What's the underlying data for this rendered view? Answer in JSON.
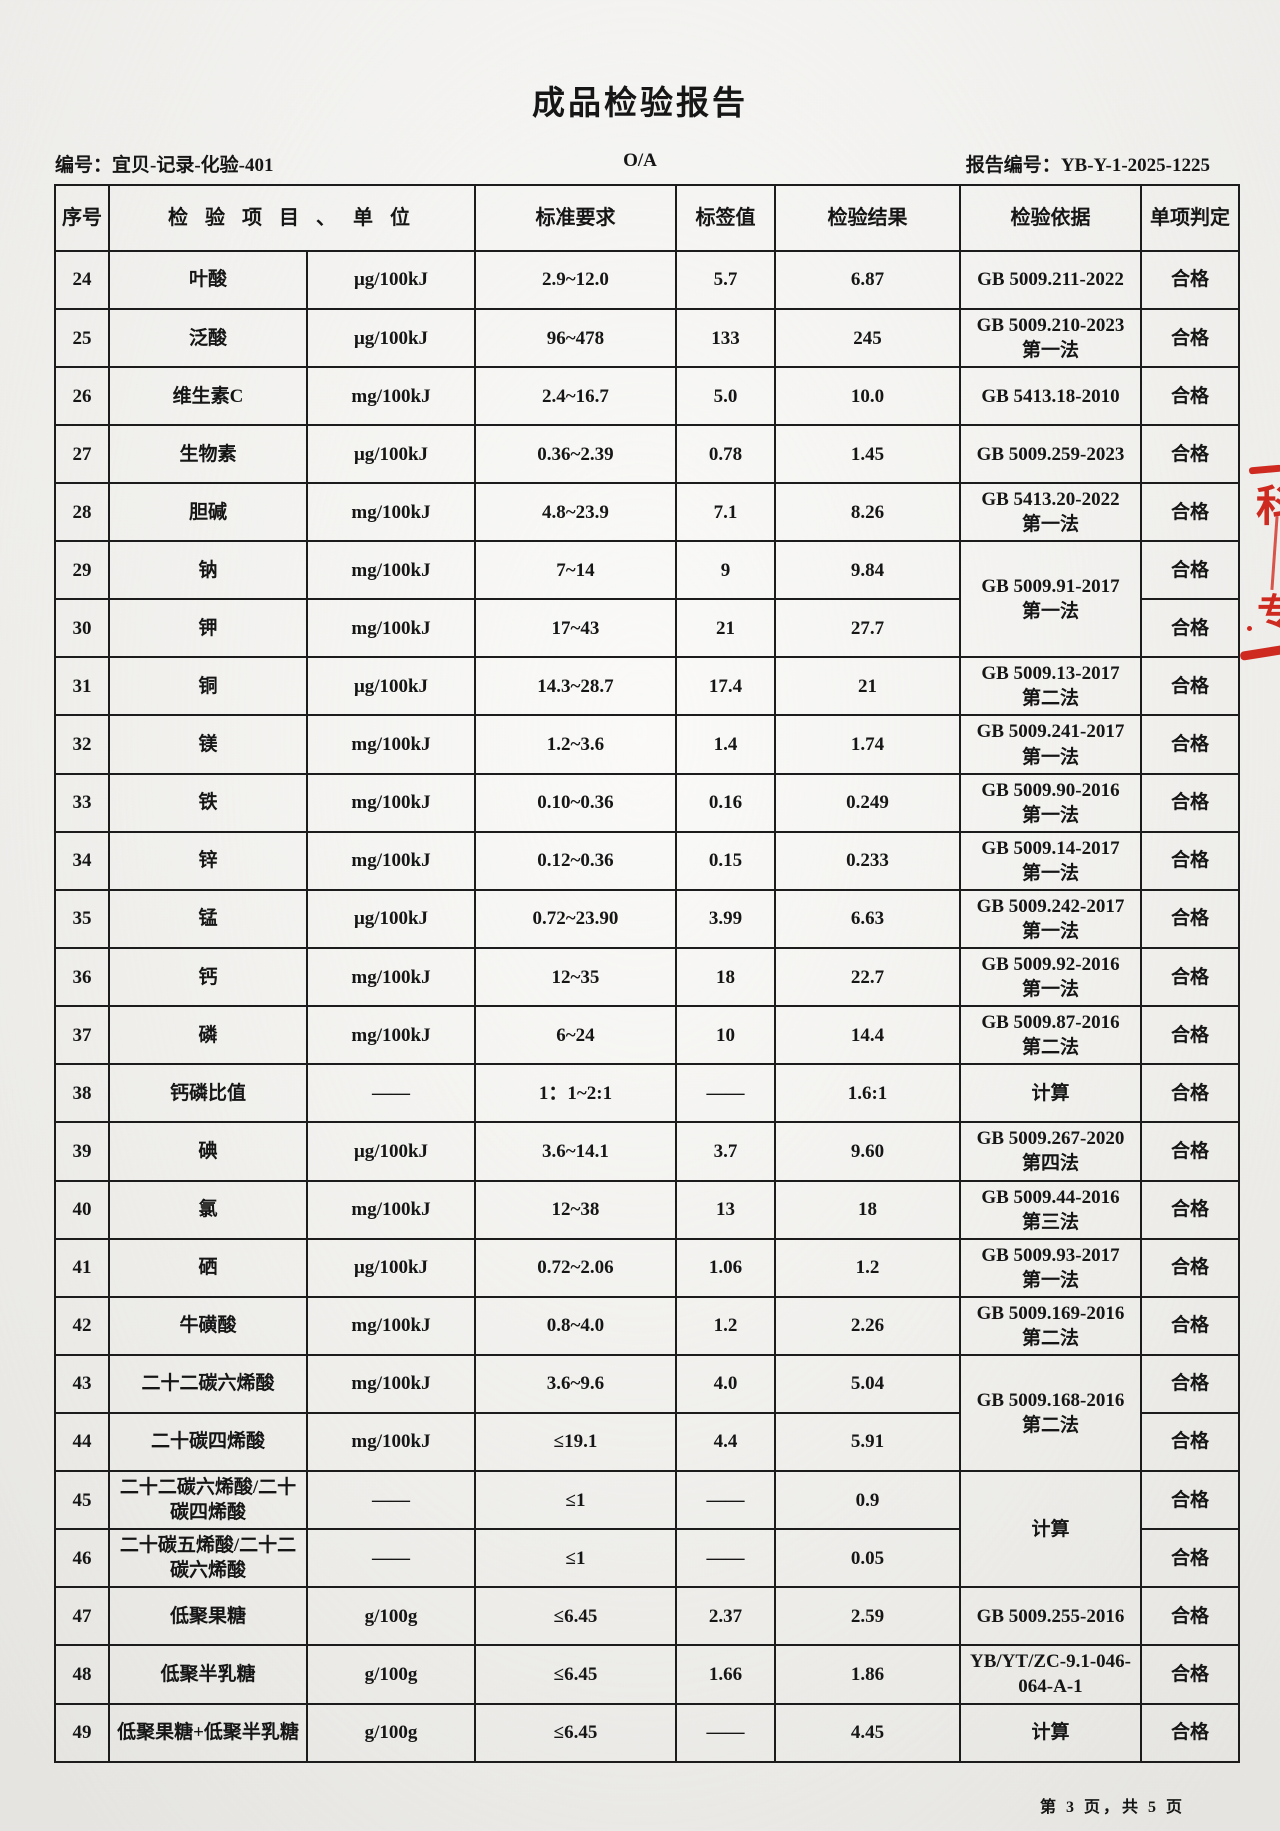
{
  "page": {
    "title": "成品检验报告",
    "doc_no_label": "编号：",
    "doc_no": "宜贝-记录-化验-401",
    "revision": "O/A",
    "report_no_label": "报告编号：",
    "report_no": "YB-Y-1-2025-1225",
    "footer": "第 3 页，共 5 页"
  },
  "table": {
    "headers": [
      "序号",
      "检 验 项 目 、 单 位",
      "标准要求",
      "标签值",
      "检验结果",
      "检验依据",
      "单项判定"
    ],
    "rows": [
      {
        "no": "24",
        "item": "叶酸",
        "unit": "μg/100kJ",
        "standard": "2.9~12.0",
        "label": "5.7",
        "result": "6.87",
        "basis": {
          "lines": [
            "GB 5009.211-2022"
          ],
          "rowspan": 1
        },
        "verdict": "合格"
      },
      {
        "no": "25",
        "item": "泛酸",
        "unit": "μg/100kJ",
        "standard": "96~478",
        "label": "133",
        "result": "245",
        "basis": {
          "lines": [
            "GB 5009.210-2023",
            "第一法"
          ],
          "rowspan": 1
        },
        "verdict": "合格"
      },
      {
        "no": "26",
        "item": "维生素C",
        "unit": "mg/100kJ",
        "standard": "2.4~16.7",
        "label": "5.0",
        "result": "10.0",
        "basis": {
          "lines": [
            "GB 5413.18-2010"
          ],
          "rowspan": 1
        },
        "verdict": "合格"
      },
      {
        "no": "27",
        "item": "生物素",
        "unit": "μg/100kJ",
        "standard": "0.36~2.39",
        "label": "0.78",
        "result": "1.45",
        "basis": {
          "lines": [
            "GB 5009.259-2023"
          ],
          "rowspan": 1
        },
        "verdict": "合格"
      },
      {
        "no": "28",
        "item": "胆碱",
        "unit": "mg/100kJ",
        "standard": "4.8~23.9",
        "label": "7.1",
        "result": "8.26",
        "basis": {
          "lines": [
            "GB 5413.20-2022",
            "第一法"
          ],
          "rowspan": 1
        },
        "verdict": "合格"
      },
      {
        "no": "29",
        "item": "钠",
        "unit": "mg/100kJ",
        "standard": "7~14",
        "label": "9",
        "result": "9.84",
        "basis": {
          "lines": [
            "GB 5009.91-2017",
            "第一法"
          ],
          "rowspan": 2
        },
        "verdict": "合格"
      },
      {
        "no": "30",
        "item": "钾",
        "unit": "mg/100kJ",
        "standard": "17~43",
        "label": "21",
        "result": "27.7",
        "basis": null,
        "verdict": "合格"
      },
      {
        "no": "31",
        "item": "铜",
        "unit": "μg/100kJ",
        "standard": "14.3~28.7",
        "label": "17.4",
        "result": "21",
        "basis": {
          "lines": [
            "GB 5009.13-2017",
            "第二法"
          ],
          "rowspan": 1
        },
        "verdict": "合格"
      },
      {
        "no": "32",
        "item": "镁",
        "unit": "mg/100kJ",
        "standard": "1.2~3.6",
        "label": "1.4",
        "result": "1.74",
        "basis": {
          "lines": [
            "GB 5009.241-2017",
            "第一法"
          ],
          "rowspan": 1
        },
        "verdict": "合格"
      },
      {
        "no": "33",
        "item": "铁",
        "unit": "mg/100kJ",
        "standard": "0.10~0.36",
        "label": "0.16",
        "result": "0.249",
        "basis": {
          "lines": [
            "GB 5009.90-2016",
            "第一法"
          ],
          "rowspan": 1
        },
        "verdict": "合格"
      },
      {
        "no": "34",
        "item": "锌",
        "unit": "mg/100kJ",
        "standard": "0.12~0.36",
        "label": "0.15",
        "result": "0.233",
        "basis": {
          "lines": [
            "GB 5009.14-2017",
            "第一法"
          ],
          "rowspan": 1
        },
        "verdict": "合格"
      },
      {
        "no": "35",
        "item": "锰",
        "unit": "μg/100kJ",
        "standard": "0.72~23.90",
        "label": "3.99",
        "result": "6.63",
        "basis": {
          "lines": [
            "GB 5009.242-2017",
            "第一法"
          ],
          "rowspan": 1
        },
        "verdict": "合格"
      },
      {
        "no": "36",
        "item": "钙",
        "unit": "mg/100kJ",
        "standard": "12~35",
        "label": "18",
        "result": "22.7",
        "basis": {
          "lines": [
            "GB 5009.92-2016",
            "第一法"
          ],
          "rowspan": 1
        },
        "verdict": "合格"
      },
      {
        "no": "37",
        "item": "磷",
        "unit": "mg/100kJ",
        "standard": "6~24",
        "label": "10",
        "result": "14.4",
        "basis": {
          "lines": [
            "GB 5009.87-2016",
            "第二法"
          ],
          "rowspan": 1
        },
        "verdict": "合格"
      },
      {
        "no": "38",
        "item": "钙磷比值",
        "unit": "——",
        "standard": "1：1~2:1",
        "label": "——",
        "result": "1.6:1",
        "basis": {
          "lines": [
            "计算"
          ],
          "rowspan": 1
        },
        "verdict": "合格"
      },
      {
        "no": "39",
        "item": "碘",
        "unit": "μg/100kJ",
        "standard": "3.6~14.1",
        "label": "3.7",
        "result": "9.60",
        "basis": {
          "lines": [
            "GB 5009.267-2020",
            "第四法"
          ],
          "rowspan": 1
        },
        "verdict": "合格"
      },
      {
        "no": "40",
        "item": "氯",
        "unit": "mg/100kJ",
        "standard": "12~38",
        "label": "13",
        "result": "18",
        "basis": {
          "lines": [
            "GB 5009.44-2016",
            "第三法"
          ],
          "rowspan": 1
        },
        "verdict": "合格"
      },
      {
        "no": "41",
        "item": "硒",
        "unit": "μg/100kJ",
        "standard": "0.72~2.06",
        "label": "1.06",
        "result": "1.2",
        "basis": {
          "lines": [
            "GB 5009.93-2017",
            "第一法"
          ],
          "rowspan": 1
        },
        "verdict": "合格"
      },
      {
        "no": "42",
        "item": "牛磺酸",
        "unit": "mg/100kJ",
        "standard": "0.8~4.0",
        "label": "1.2",
        "result": "2.26",
        "basis": {
          "lines": [
            "GB 5009.169-2016",
            "第二法"
          ],
          "rowspan": 1
        },
        "verdict": "合格"
      },
      {
        "no": "43",
        "item": "二十二碳六烯酸",
        "unit": "mg/100kJ",
        "standard": "3.6~9.6",
        "label": "4.0",
        "result": "5.04",
        "basis": {
          "lines": [
            "GB 5009.168-2016",
            "第二法"
          ],
          "rowspan": 2
        },
        "verdict": "合格"
      },
      {
        "no": "44",
        "item": "二十碳四烯酸",
        "unit": "mg/100kJ",
        "standard": "≤19.1",
        "label": "4.4",
        "result": "5.91",
        "basis": null,
        "verdict": "合格"
      },
      {
        "no": "45",
        "item": "二十二碳六烯酸/二十碳四烯酸",
        "unit": "——",
        "standard": "≤1",
        "label": "——",
        "result": "0.9",
        "basis": {
          "lines": [
            "计算"
          ],
          "rowspan": 2
        },
        "verdict": "合格"
      },
      {
        "no": "46",
        "item": "二十碳五烯酸/二十二碳六烯酸",
        "unit": "——",
        "standard": "≤1",
        "label": "——",
        "result": "0.05",
        "basis": null,
        "verdict": "合格"
      },
      {
        "no": "47",
        "item": "低聚果糖",
        "unit": "g/100g",
        "standard": "≤6.45",
        "label": "2.37",
        "result": "2.59",
        "basis": {
          "lines": [
            "GB 5009.255-2016"
          ],
          "rowspan": 1
        },
        "verdict": "合格"
      },
      {
        "no": "48",
        "item": "低聚半乳糖",
        "unit": "g/100g",
        "standard": "≤6.45",
        "label": "1.66",
        "result": "1.86",
        "basis": {
          "lines": [
            "YB/YT/ZC-9.1-046-",
            "064-A-1"
          ],
          "rowspan": 1
        },
        "verdict": "合格"
      },
      {
        "no": "49",
        "item": "低聚果糖+低聚半乳糖",
        "unit": "g/100g",
        "standard": "≤6.45",
        "label": "——",
        "result": "4.45",
        "basis": {
          "lines": [
            "计算"
          ],
          "rowspan": 1
        },
        "verdict": "合格"
      }
    ]
  },
  "red_annotations": {
    "mark1": "科",
    "mark2": "专"
  },
  "colors": {
    "ink": "#1c1c1c",
    "stamp_red": "#cf2a20",
    "paper": "#f4f3f0"
  }
}
